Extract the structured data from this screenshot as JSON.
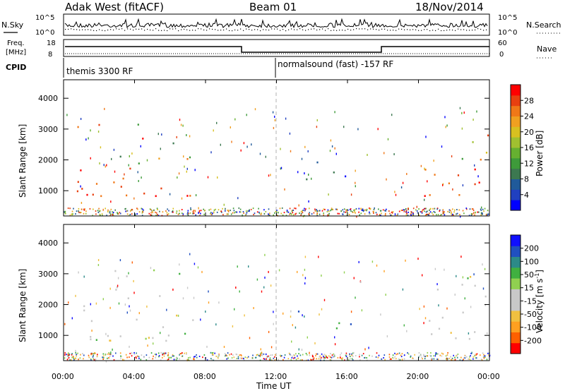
{
  "header": {
    "radar": "Adak West (fitACF)",
    "beam": "Beam 01",
    "date": "18/Nov/2014"
  },
  "summary": {
    "nsky_label": "N.Sky",
    "nsearch_label": "N.Search",
    "noise_ticks": [
      "10^5",
      "10^0"
    ],
    "freq_label_1": "Freq.",
    "freq_label_2": "[MHz]",
    "freq_ticks": [
      "18",
      "8"
    ],
    "nave_label": "Nave",
    "nave_ticks": [
      "60",
      "0"
    ],
    "cpid_label": "CPID",
    "cpid_1": "themis 3300 RF",
    "cpid_2": "normalsound (fast) -157 RF"
  },
  "chart_data": [
    {
      "type": "heatmap",
      "name": "power",
      "ylabel": "Slant Range [km]",
      "yticks": [
        "4000",
        "3000",
        "2000",
        "1000"
      ],
      "ylim": [
        180,
        4600
      ],
      "xlim": [
        0,
        24
      ],
      "colorbar_label": "Power [dB]",
      "colorbar_ticks": [
        "28",
        "24",
        "20",
        "16",
        "12",
        "8",
        "4"
      ],
      "colorbar_colors": [
        "#0000ff",
        "#2040c0",
        "#205a9a",
        "#3c7850",
        "#3e9a3a",
        "#66b030",
        "#a0c030",
        "#d8c020",
        "#f0a020",
        "#f07818",
        "#e84010",
        "#ff0000"
      ],
      "regions": [
        {
          "t0": 0.7,
          "t1": 7.5,
          "r_base": 850,
          "r_top": 3300,
          "dominant": "high"
        },
        {
          "t0": 13.2,
          "t1": 16.3,
          "r_base": 1250,
          "r_top": 2000,
          "dominant": "low"
        },
        {
          "t0": 20.3,
          "t1": 24.0,
          "r_base": 850,
          "r_top": 3300,
          "dominant": "high"
        }
      ]
    },
    {
      "type": "heatmap",
      "name": "velocity",
      "ylabel": "Slant Range [km]",
      "yticks": [
        "4000",
        "3000",
        "2000",
        "1000"
      ],
      "ylim": [
        180,
        4600
      ],
      "xlim": [
        0,
        24
      ],
      "colorbar_label": "Velocity [m s",
      "colorbar_label_sup": "-1",
      "colorbar_label_end": "]",
      "colorbar_ticks": [
        "200",
        "100",
        "50",
        "15",
        "-15",
        "-50",
        "-100",
        "-200"
      ],
      "colorbar_colors": [
        "#ff0000",
        "#ff6000",
        "#ffa020",
        "#f0c040",
        "#c8c8c8",
        "#c8c8c8",
        "#90d050",
        "#40b040",
        "#2c8a88",
        "#2050c0",
        "#1010ff"
      ],
      "regions": [
        {
          "t0": 0.7,
          "t1": 7.5,
          "r_base": 850,
          "r_top": 3300,
          "dominant": "gray"
        },
        {
          "t0": 13.2,
          "t1": 16.3,
          "r_base": 1250,
          "r_top": 2000,
          "dominant": "blue"
        },
        {
          "t0": 20.3,
          "t1": 24.0,
          "r_base": 850,
          "r_top": 3300,
          "dominant": "gray"
        }
      ]
    }
  ],
  "time_axis": {
    "label": "Time UT",
    "ticks": [
      "00:00",
      "04:00",
      "08:00",
      "12:00",
      "16:00",
      "20:00",
      "00:00"
    ]
  },
  "colors": {
    "axis": "#000000",
    "dashed_line": "#b0b0b0"
  }
}
